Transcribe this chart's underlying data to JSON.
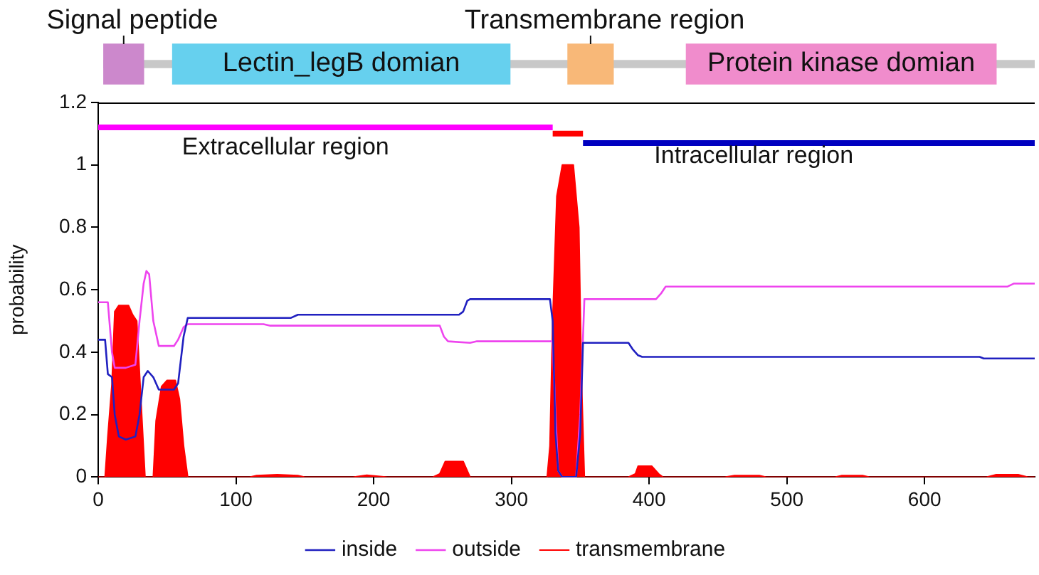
{
  "chart_data": [
    {
      "type": "bar",
      "orientation": "horizontal",
      "categories": [
        null
      ],
      "xlim": [
        0,
        680
      ],
      "tick_labels": false,
      "series": [
        {
          "color": "#c8c8c8",
          "values": [
            676
          ],
          "base": [
            4
          ]
        },
        {
          "name": "Signal peptide",
          "color": "#cc88cc",
          "values": [
            29
          ],
          "base": [
            4
          ]
        },
        {
          "name": "Lectin_legB domian",
          "color": "#66d0ee",
          "values": [
            245
          ],
          "base": [
            54
          ]
        },
        {
          "name": "Transmembrane region",
          "color": "#f8b878",
          "values": [
            33
          ],
          "base": [
            341
          ]
        },
        {
          "name": "Protein kinase domian",
          "color": "#f08ccc",
          "values": [
            225
          ],
          "base": [
            427
          ]
        }
      ]
    },
    {
      "type": "line",
      "xlim": [
        0,
        680
      ],
      "xticks": [
        0,
        100,
        200,
        300,
        400,
        500,
        600
      ],
      "ylim": [
        0,
        1.2
      ],
      "yticks": [
        0,
        0.2,
        0.4,
        0.6,
        0.8,
        1,
        1.2
      ],
      "ylabel": "probability",
      "legend": "bottom",
      "marker": "none",
      "series": [
        {
          "name": "transmembrane",
          "type": "area",
          "color": "#ff0000",
          "x": [
            0,
            5,
            7,
            10,
            12,
            15,
            22,
            25,
            28,
            31,
            34,
            40,
            42,
            46,
            50,
            56,
            59,
            62,
            65,
            110,
            115,
            130,
            145,
            150,
            185,
            195,
            210,
            243,
            248,
            252,
            265,
            270,
            326,
            328,
            330,
            333,
            337,
            345,
            349,
            351,
            353,
            385,
            390,
            392,
            402,
            407,
            410,
            455,
            462,
            480,
            485,
            535,
            540,
            555,
            560,
            645,
            652,
            668,
            675,
            680
          ],
          "values": [
            0,
            0,
            0.13,
            0.3,
            0.53,
            0.55,
            0.55,
            0.52,
            0.5,
            0.25,
            0,
            0,
            0.18,
            0.29,
            0.31,
            0.31,
            0.25,
            0.1,
            0,
            0,
            0.005,
            0.008,
            0.005,
            0,
            0,
            0.006,
            0,
            0,
            0.01,
            0.05,
            0.05,
            0,
            0,
            0.1,
            0.5,
            0.9,
            1.0,
            1.0,
            0.8,
            0.3,
            0,
            0,
            0.01,
            0.035,
            0.035,
            0.01,
            0,
            0,
            0.005,
            0.005,
            0,
            0,
            0.005,
            0.005,
            0,
            0,
            0.008,
            0.008,
            0,
            0
          ]
        },
        {
          "name": "inside",
          "type": "line",
          "color": "#2020c0",
          "x": [
            0,
            5,
            7,
            10,
            12,
            15,
            20,
            27,
            30,
            33,
            36,
            40,
            44,
            55,
            58,
            62,
            65,
            140,
            145,
            262,
            265,
            268,
            270,
            328,
            330,
            332,
            334,
            337,
            347,
            350,
            352,
            385,
            388,
            392,
            395,
            640,
            643,
            680
          ],
          "values": [
            0.44,
            0.44,
            0.33,
            0.32,
            0.2,
            0.13,
            0.12,
            0.13,
            0.2,
            0.32,
            0.34,
            0.32,
            0.28,
            0.28,
            0.3,
            0.45,
            0.51,
            0.51,
            0.52,
            0.52,
            0.53,
            0.565,
            0.57,
            0.57,
            0.5,
            0.14,
            0.02,
            0,
            0,
            0.14,
            0.43,
            0.43,
            0.41,
            0.39,
            0.385,
            0.385,
            0.38,
            0.38
          ]
        },
        {
          "name": "outside",
          "type": "line",
          "color": "#ee44ee",
          "x": [
            0,
            7,
            10,
            12,
            20,
            27,
            30,
            33,
            35,
            37,
            40,
            44,
            55,
            58,
            62,
            65,
            120,
            125,
            248,
            251,
            254,
            270,
            275,
            330,
            332,
            334,
            337,
            347,
            350,
            353,
            405,
            409,
            412,
            660,
            665,
            680
          ],
          "values": [
            0.56,
            0.56,
            0.4,
            0.35,
            0.35,
            0.36,
            0.5,
            0.62,
            0.66,
            0.65,
            0.5,
            0.42,
            0.42,
            0.44,
            0.48,
            0.49,
            0.49,
            0.485,
            0.485,
            0.45,
            0.435,
            0.43,
            0.435,
            0.435,
            0.2,
            0.02,
            0,
            0,
            0.2,
            0.57,
            0.57,
            0.59,
            0.61,
            0.61,
            0.62,
            0.62
          ]
        },
        {
          "type": "line",
          "color": "#ff00ff",
          "x": [
            0,
            330
          ],
          "values": [
            1.12,
            1.12
          ]
        },
        {
          "type": "line",
          "color": "#ff0000",
          "x": [
            330,
            352
          ],
          "values": [
            1.1,
            1.1
          ]
        },
        {
          "type": "line",
          "color": "#0000c0",
          "x": [
            352,
            680
          ],
          "values": [
            1.07,
            1.07
          ]
        }
      ],
      "annotations": [
        "Extracellular region",
        "Intracellular region"
      ]
    }
  ]
}
